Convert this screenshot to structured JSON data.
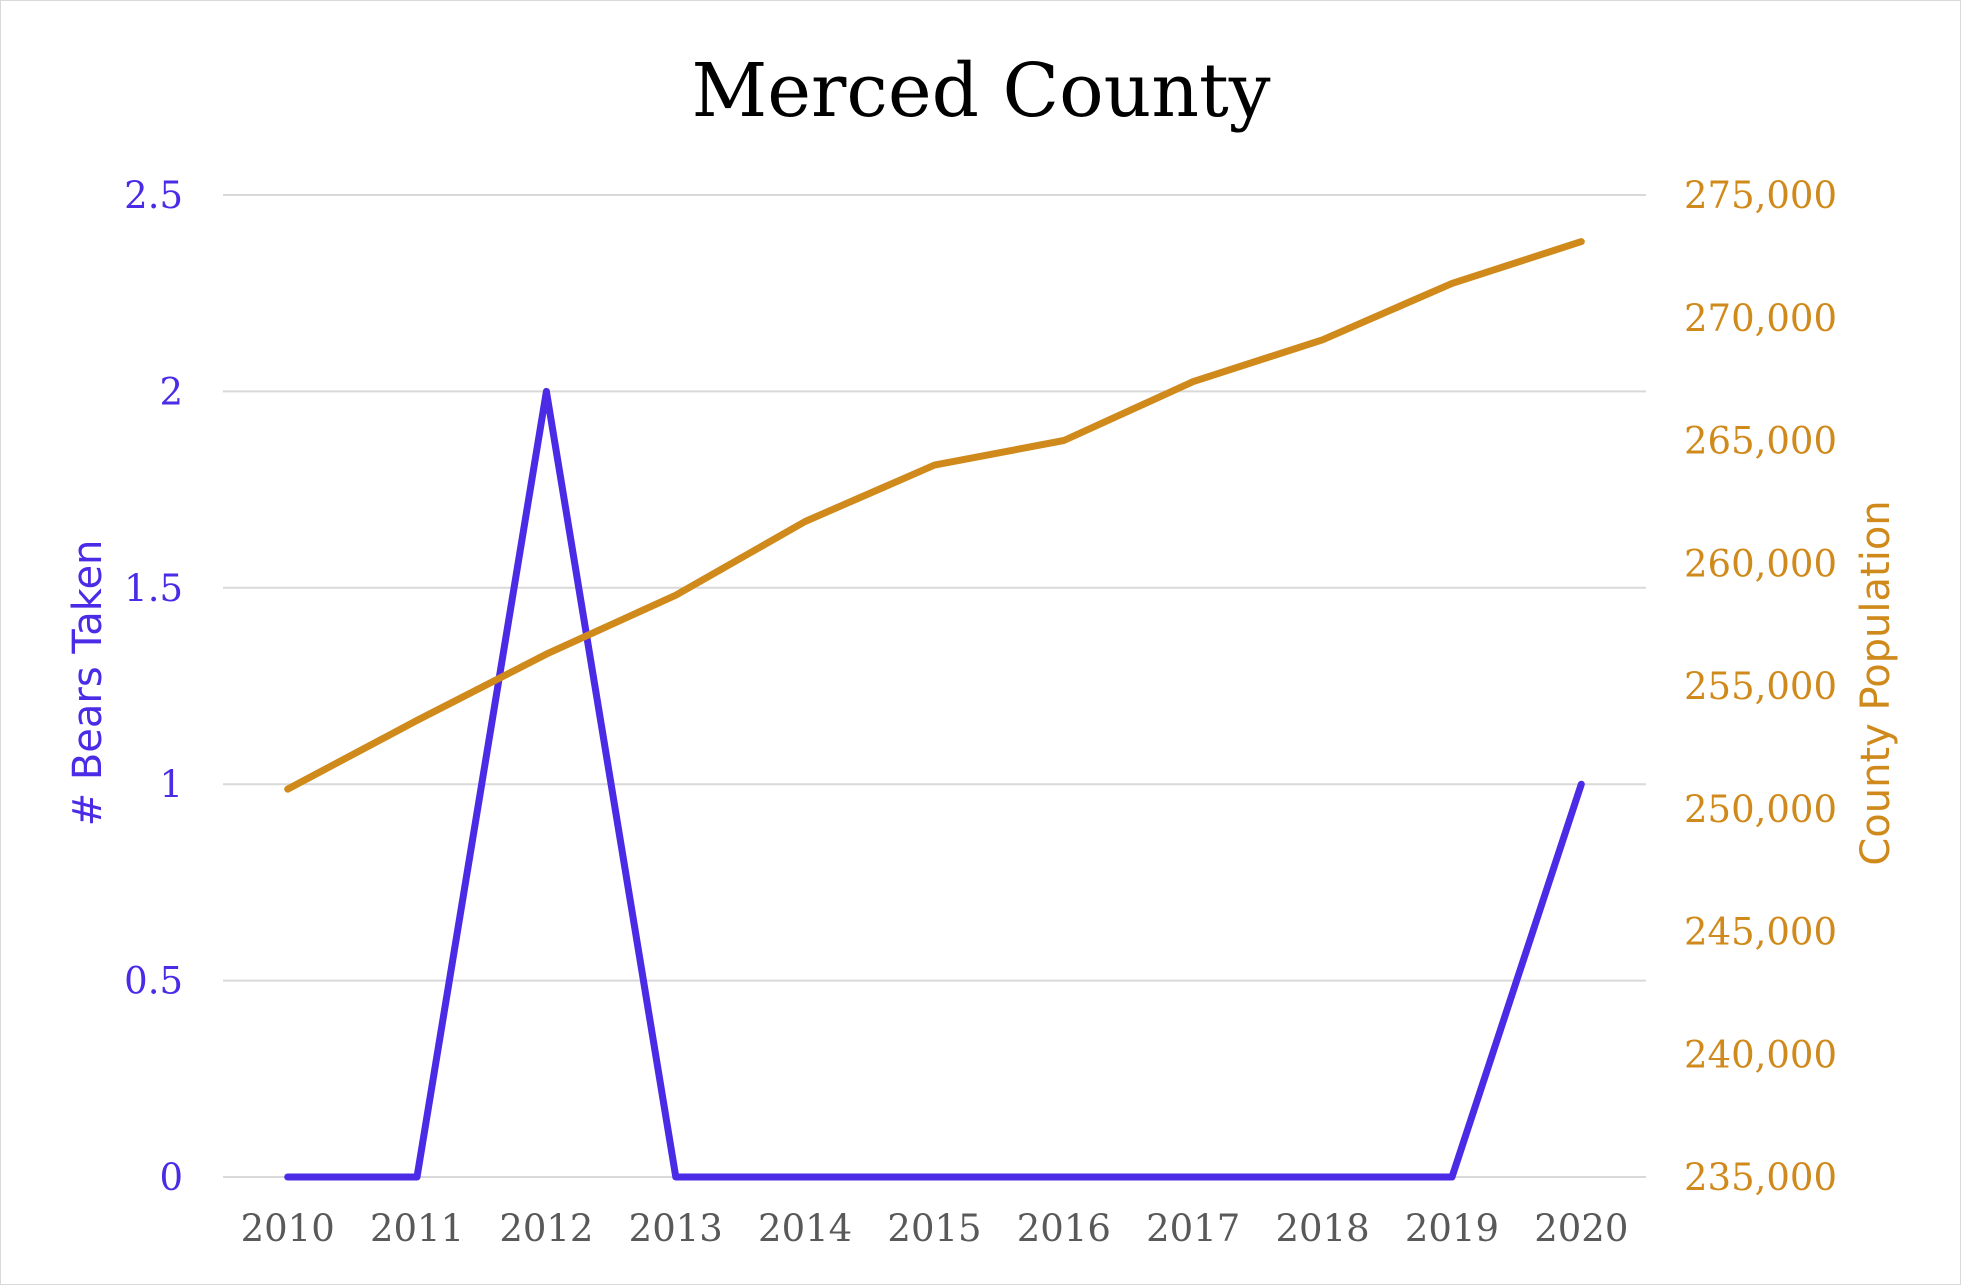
{
  "chart_data": {
    "type": "line",
    "title": "Merced County",
    "xlabel": "",
    "ylabel": "# Bears Taken",
    "y2label": "County Population",
    "categories": [
      "2010",
      "2011",
      "2012",
      "2013",
      "2014",
      "2015",
      "2016",
      "2017",
      "2018",
      "2019",
      "2020"
    ],
    "series": [
      {
        "name": "# Bears Taken",
        "axis": "left",
        "color": "#4B2BE6",
        "values": [
          0,
          0,
          2,
          0,
          0,
          0,
          0,
          0,
          0,
          0,
          1
        ]
      },
      {
        "name": "County Population",
        "axis": "right",
        "color": "#D08A1C",
        "values": [
          250800,
          253600,
          256300,
          258700,
          261700,
          264000,
          265000,
          267400,
          269100,
          271400,
          273100
        ]
      }
    ],
    "ylim": [
      0,
      2.5
    ],
    "y2lim": [
      235000,
      275000
    ],
    "yticks": [
      "0",
      "0.5",
      "1",
      "1.5",
      "2",
      "2.5"
    ],
    "y2ticks": [
      "235,000",
      "240,000",
      "245,000",
      "250,000",
      "255,000",
      "260,000",
      "265,000",
      "270,000",
      "275,000"
    ],
    "grid": true,
    "legend": "none"
  }
}
